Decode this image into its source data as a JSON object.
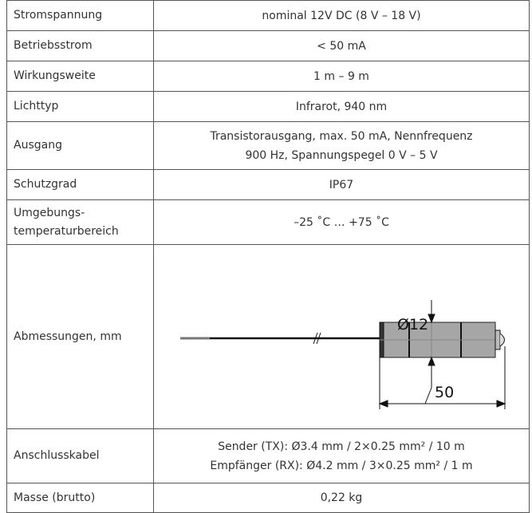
{
  "table": {
    "rows": [
      [
        "Stromspannung",
        [
          "nominal 12V DC (8 V – 18 V)"
        ]
      ],
      [
        "Betriebsstrom",
        [
          "< 50 mA"
        ]
      ],
      [
        "Wirkungsweite",
        [
          "1 m – 9 m"
        ]
      ],
      [
        "Lichttyp",
        [
          "Infrarot, 940 nm"
        ]
      ],
      [
        "Ausgang",
        [
          "Transistorausgang, max. 50 mA, Nennfrequenz",
          "900 Hz, Spannungspegel 0 V – 5 V"
        ]
      ],
      [
        "Schutzgrad",
        [
          "IP67"
        ]
      ],
      [
        "Umgebungs-\ntemperaturbereich",
        [
          "–25 ˚C … +75 ˚C"
        ]
      ],
      [
        "Abmessungen, mm",
        []
      ],
      [
        "Anschlusskabel",
        [
          "Sender (TX): Ø3.4 mm / 2×0.25 mm² / 10 m",
          "Empfänger (RX): Ø4.2 mm / 3×0.25 mm² / 1 m"
        ]
      ],
      [
        "Masse (brutto)",
        [
          "0,22 kg"
        ]
      ]
    ]
  },
  "drawing": {
    "diameter_label": "Ø12",
    "length_label": "50"
  }
}
